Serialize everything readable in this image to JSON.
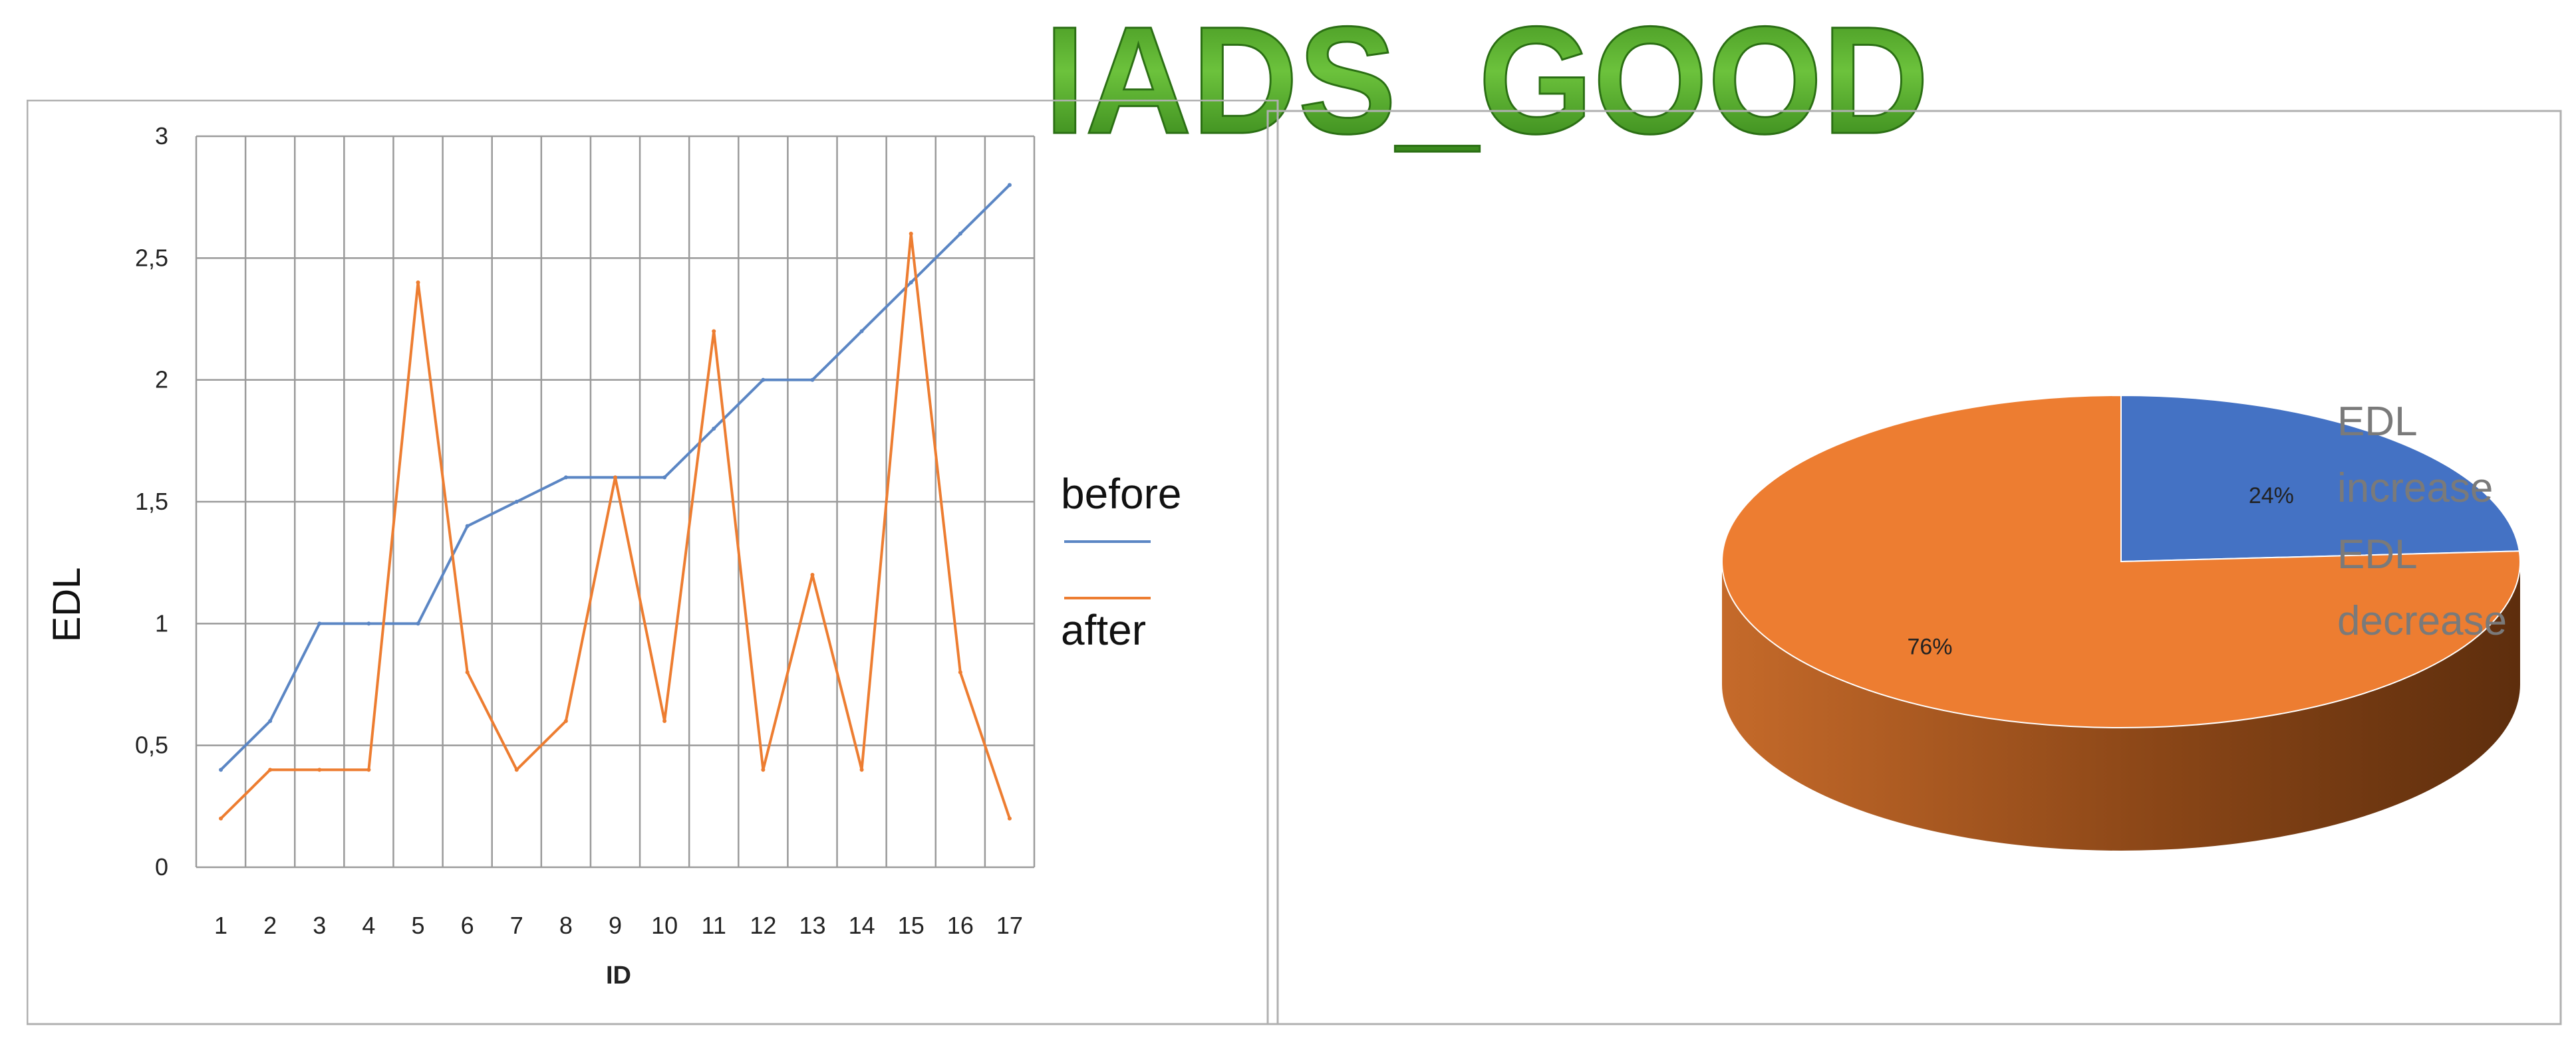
{
  "title": "IADS_GOOD",
  "colors": {
    "before": "#5B86C4",
    "after": "#ED7D31",
    "pie_increase": "#4472C4",
    "pie_decrease": "#ED7D31",
    "title_green": "#4FA12A"
  },
  "chart_data": [
    {
      "type": "line",
      "title": "",
      "xlabel": "ID",
      "ylabel": "EDL",
      "x": [
        1,
        2,
        3,
        4,
        5,
        6,
        7,
        8,
        9,
        10,
        11,
        12,
        13,
        14,
        15,
        16,
        17
      ],
      "x_tick_labels": [
        "1",
        "2",
        "3",
        "4",
        "5",
        "6",
        "7",
        "8",
        "9",
        "10",
        "11",
        "12",
        "13",
        "14",
        "15",
        "16",
        "17"
      ],
      "y_tick_labels": [
        "0",
        "0,5",
        "1",
        "1,5",
        "2",
        "2,5",
        "3"
      ],
      "ylim": [
        0,
        3
      ],
      "grid": true,
      "legend": "right",
      "series": [
        {
          "name": "before",
          "values": [
            0.4,
            0.6,
            1.0,
            1.0,
            1.0,
            1.4,
            1.5,
            1.6,
            1.6,
            1.6,
            1.8,
            2.0,
            2.0,
            2.2,
            2.4,
            2.6,
            2.8
          ]
        },
        {
          "name": "after",
          "values": [
            0.2,
            0.4,
            0.4,
            0.4,
            2.4,
            0.8,
            0.4,
            0.6,
            1.6,
            0.6,
            2.2,
            0.4,
            1.2,
            0.4,
            2.6,
            0.8,
            0.2
          ]
        }
      ]
    },
    {
      "type": "pie",
      "title": "",
      "slices": [
        {
          "name": "EDL increase",
          "value": 24,
          "label": "24%"
        },
        {
          "name": "EDL decrease",
          "value": 76,
          "label": "76%"
        }
      ],
      "legend": "right",
      "legend_lines": [
        [
          "EDL",
          "increase"
        ],
        [
          "EDL",
          "decrease"
        ]
      ]
    }
  ]
}
